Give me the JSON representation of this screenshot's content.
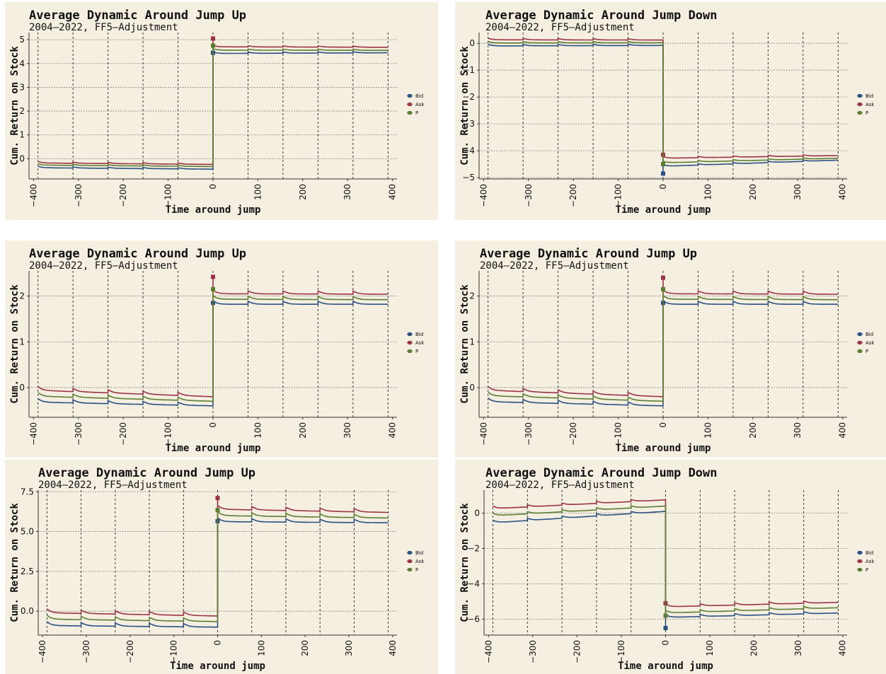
{
  "colors": {
    "Bid": "#2a5082",
    "Ask": "#9a3344",
    "P": "#5b7d31",
    "background": "#f5efe2"
  },
  "chart_data": [
    {
      "type": "line",
      "title": "Average Dynamic Around Jump Up",
      "subtitle": "2004–2022, FF5–Adjustment",
      "xlabel": "Time around jump",
      "ylabel": "Cum. Return on Stock",
      "xlim": [
        -410,
        410
      ],
      "ylim": [
        -0.85,
        5.3
      ],
      "xticks": [
        -400,
        -300,
        -200,
        -100,
        0,
        100,
        200,
        300,
        400
      ],
      "xtick_labels": [
        "−400",
        "−300",
        "−200",
        "−100",
        "0",
        "100",
        "200",
        "300",
        "400"
      ],
      "yticks": [
        0,
        1,
        2,
        3,
        4,
        5
      ],
      "ytick_labels": [
        "0",
        "1",
        "2",
        "3",
        "4",
        "5"
      ],
      "vlines": [
        -390,
        -312,
        -234,
        -156,
        -78,
        0,
        78,
        156,
        234,
        312,
        390
      ],
      "legend": "right",
      "jump": "up",
      "spike": 0.06,
      "series": [
        {
          "name": "Bid",
          "pre": [
            -0.38,
            -0.44
          ],
          "at": 4.45,
          "post": [
            4.42,
            4.45
          ]
        },
        {
          "name": "Ask",
          "pre": [
            -0.18,
            -0.24
          ],
          "at": 5.05,
          "post": [
            4.7,
            4.68
          ]
        },
        {
          "name": "P",
          "pre": [
            -0.27,
            -0.33
          ],
          "at": 4.75,
          "post": [
            4.56,
            4.55
          ]
        }
      ],
      "legend_labels": [
        "Bid",
        "Ask",
        "P"
      ]
    },
    {
      "type": "line",
      "title": "Average Dynamic Around Jump Down",
      "subtitle": "2004–2022, FF5–Adjustment",
      "xlabel": "Time around jump",
      "ylabel": "Cum. Return on Stock",
      "xlim": [
        -410,
        410
      ],
      "ylim": [
        -5.05,
        0.4
      ],
      "xticks": [
        -400,
        -300,
        -200,
        -100,
        0,
        100,
        200,
        300,
        400
      ],
      "xtick_labels": [
        "−400",
        "−300",
        "−200",
        "−100",
        "0",
        "100",
        "200",
        "300",
        "400"
      ],
      "yticks": [
        0,
        -1,
        -2,
        -3,
        -4,
        -5
      ],
      "ytick_labels": [
        "0",
        "−1",
        "−2",
        "−3",
        "−4",
        "−5"
      ],
      "vlines": [
        -390,
        -312,
        -234,
        -156,
        -78,
        0,
        78,
        156,
        234,
        312,
        390
      ],
      "legend": "right",
      "jump": "down",
      "spike": 0.06,
      "series": [
        {
          "name": "Bid",
          "pre": [
            -0.1,
            -0.08
          ],
          "at": -4.85,
          "post": [
            -4.58,
            -4.35
          ]
        },
        {
          "name": "Ask",
          "pre": [
            0.13,
            0.12
          ],
          "at": -4.15,
          "post": [
            -4.28,
            -4.18
          ]
        },
        {
          "name": "P",
          "pre": [
            0.01,
            0.02
          ],
          "at": -4.5,
          "post": [
            -4.45,
            -4.28
          ]
        }
      ],
      "legend_labels": [
        "Bid",
        "Ask",
        "P"
      ]
    },
    {
      "type": "line",
      "title": "Average Dynamic Around Jump Up",
      "subtitle": "2004–2022, FF5–Adjustment",
      "xlabel": "Time around jump",
      "ylabel": "Cum. Return on Stock",
      "xlim": [
        -410,
        410
      ],
      "ylim": [
        -0.65,
        2.55
      ],
      "xticks": [
        -400,
        -300,
        -200,
        -100,
        0,
        100,
        200,
        300,
        400
      ],
      "xtick_labels": [
        "−400",
        "−300",
        "−200",
        "−100",
        "0",
        "100",
        "200",
        "300",
        "400"
      ],
      "yticks": [
        0,
        1,
        2
      ],
      "ytick_labels": [
        "0",
        "1",
        "2"
      ],
      "vlines": [
        -390,
        -312,
        -234,
        -156,
        -78,
        0,
        78,
        156,
        234,
        312,
        390
      ],
      "legend": "right",
      "jump": "up",
      "spike": 0.08,
      "series": [
        {
          "name": "Bid",
          "pre": [
            -0.32,
            -0.4
          ],
          "at": 1.85,
          "post": [
            1.82,
            1.82
          ]
        },
        {
          "name": "Ask",
          "pre": [
            -0.06,
            -0.2
          ],
          "at": 2.42,
          "post": [
            2.05,
            2.04
          ]
        },
        {
          "name": "P",
          "pre": [
            -0.19,
            -0.3
          ],
          "at": 2.15,
          "post": [
            1.93,
            1.92
          ]
        }
      ],
      "legend_labels": [
        "Bid",
        "Ask",
        "P"
      ]
    },
    {
      "type": "line",
      "title": "Average Dynamic Around Jump Up",
      "subtitle": "2004–2022, FF5–Adjustment",
      "xlabel": "Time around jump",
      "ylabel": "Cum. Return on Stock",
      "xlim": [
        -410,
        410
      ],
      "ylim": [
        -0.65,
        2.55
      ],
      "xticks": [
        -400,
        -300,
        -200,
        -100,
        0,
        100,
        200,
        300,
        400
      ],
      "xtick_labels": [
        "−400",
        "−300",
        "−200",
        "−100",
        "0",
        "100",
        "200",
        "300",
        "400"
      ],
      "yticks": [
        0,
        1,
        2
      ],
      "ytick_labels": [
        "0",
        "1",
        "2"
      ],
      "vlines": [
        -390,
        -312,
        -234,
        -156,
        -78,
        0,
        78,
        156,
        234,
        312,
        390
      ],
      "legend": "right",
      "jump": "up",
      "spike": 0.08,
      "series": [
        {
          "name": "Bid",
          "pre": [
            -0.31,
            -0.4
          ],
          "at": 1.85,
          "post": [
            1.82,
            1.82
          ]
        },
        {
          "name": "Ask",
          "pre": [
            -0.06,
            -0.2
          ],
          "at": 2.4,
          "post": [
            2.05,
            2.04
          ]
        },
        {
          "name": "P",
          "pre": [
            -0.18,
            -0.3
          ],
          "at": 2.15,
          "post": [
            1.93,
            1.92
          ]
        }
      ],
      "legend_labels": [
        "Bid",
        "Ask",
        "P"
      ]
    },
    {
      "type": "line",
      "title": "Average Dynamic Around Jump Up",
      "subtitle": "2004–2022, FF5–Adjustment",
      "xlabel": "Time around jump",
      "ylabel": "Cum. Return on Stock",
      "xlim": [
        -410,
        410
      ],
      "ylim": [
        -1.5,
        7.6
      ],
      "xticks": [
        -400,
        -300,
        -200,
        -100,
        0,
        100,
        200,
        300,
        400
      ],
      "xtick_labels": [
        "−400",
        "−300",
        "−200",
        "−100",
        "0",
        "100",
        "200",
        "300",
        "400"
      ],
      "yticks": [
        0,
        2.5,
        5,
        7.5
      ],
      "ytick_labels": [
        "0.0",
        "2.5",
        "5.0",
        "7.5"
      ],
      "vlines": [
        -390,
        -312,
        -234,
        -156,
        -78,
        0,
        78,
        156,
        234,
        312,
        390
      ],
      "legend": "right",
      "jump": "up",
      "spike": 0.25,
      "series": [
        {
          "name": "Bid",
          "pre": [
            -0.9,
            -1.0
          ],
          "at": 5.65,
          "post": [
            5.62,
            5.55
          ]
        },
        {
          "name": "Ask",
          "pre": [
            -0.1,
            -0.3
          ],
          "at": 7.1,
          "post": [
            6.4,
            6.2
          ]
        },
        {
          "name": "P",
          "pre": [
            -0.5,
            -0.65
          ],
          "at": 6.35,
          "post": [
            6.0,
            5.85
          ]
        }
      ],
      "legend_labels": [
        "Bid",
        "Ask",
        "P"
      ]
    },
    {
      "type": "line",
      "title": "Average Dynamic Around Jump Down",
      "subtitle": "2004–2022, FF5–Adjustment",
      "xlabel": "Time around jump",
      "ylabel": "Cum. Return on Stock",
      "xlim": [
        -410,
        410
      ],
      "ylim": [
        -6.9,
        1.3
      ],
      "xticks": [
        -400,
        -300,
        -200,
        -100,
        0,
        100,
        200,
        300,
        400
      ],
      "xtick_labels": [
        "−400",
        "−300",
        "−200",
        "−100",
        "0",
        "100",
        "200",
        "300",
        "400"
      ],
      "yticks": [
        0,
        -2,
        -4,
        -6
      ],
      "ytick_labels": [
        "0",
        "−2",
        "−4",
        "−6"
      ],
      "vlines": [
        -390,
        -312,
        -234,
        -156,
        -78,
        0,
        78,
        156,
        234,
        312,
        390
      ],
      "legend": "right",
      "jump": "down",
      "spike": 0.15,
      "series": [
        {
          "name": "Bid",
          "pre": [
            -0.55,
            0.1
          ],
          "at": -6.5,
          "post": [
            -5.9,
            -5.65
          ]
        },
        {
          "name": "Ask",
          "pre": [
            0.25,
            0.75
          ],
          "at": -5.1,
          "post": [
            -5.3,
            -5.05
          ]
        },
        {
          "name": "P",
          "pre": [
            -0.15,
            0.4
          ],
          "at": -5.8,
          "post": [
            -5.65,
            -5.35
          ]
        }
      ],
      "legend_labels": [
        "Bid",
        "Ask",
        "P"
      ]
    }
  ]
}
